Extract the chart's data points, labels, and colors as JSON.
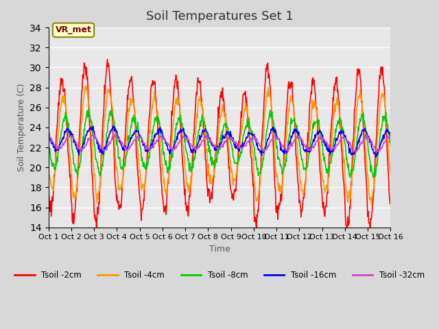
{
  "title": "Soil Temperatures Set 1",
  "xlabel": "Time",
  "ylabel": "Soil Temperature (C)",
  "ylim": [
    14,
    34
  ],
  "yticks": [
    14,
    16,
    18,
    20,
    22,
    24,
    26,
    28,
    30,
    32,
    34
  ],
  "xlim": [
    0,
    15
  ],
  "xtick_labels": [
    "Oct 1",
    "Oct 2",
    "Oct 3",
    "Oct 4",
    "Oct 5",
    "Oct 6",
    "Oct 7",
    "Oct 8",
    "Oct 9",
    "Oct 10",
    "Oct 11",
    "Oct 12",
    "Oct 13",
    "Oct 14",
    "Oct 15",
    "Oct 16"
  ],
  "annotation_text": "VR_met",
  "background_color": "#d8d8d8",
  "plot_bg_color": "#e8e8e8",
  "line_colors": {
    "Tsoil -2cm": "#ff0000",
    "Tsoil -4cm": "#ff9900",
    "Tsoil -8cm": "#00cc00",
    "Tsoil -16cm": "#0000ff",
    "Tsoil -32cm": "#cc44cc"
  },
  "figsize": [
    6.4,
    4.8
  ],
  "dpi": 100
}
